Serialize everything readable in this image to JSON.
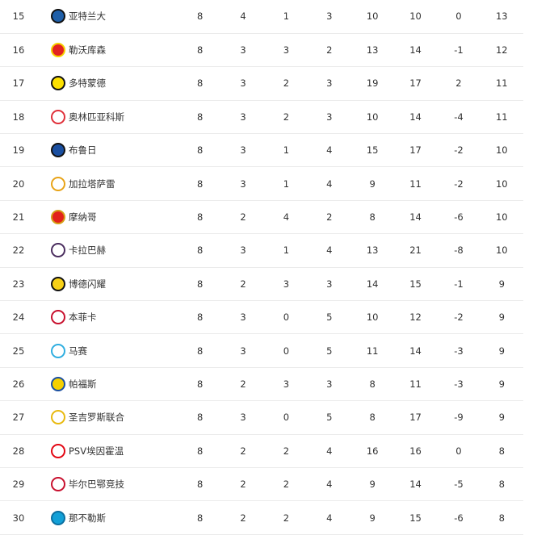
{
  "standings": [
    {
      "rank": "15",
      "team": "亚特兰大",
      "logo": "atalanta-logo",
      "color": "#1f5fa8",
      "accent": "#111111",
      "played": "8",
      "won": "4",
      "drawn": "1",
      "lost": "3",
      "gf": "10",
      "ga": "10",
      "gd": "0",
      "pts": "13"
    },
    {
      "rank": "16",
      "team": "勒沃库森",
      "logo": "leverkusen-logo",
      "color": "#e32221",
      "accent": "#f5d000",
      "played": "8",
      "won": "3",
      "drawn": "3",
      "lost": "2",
      "gf": "13",
      "ga": "14",
      "gd": "-1",
      "pts": "12"
    },
    {
      "rank": "17",
      "team": "多特蒙德",
      "logo": "dortmund-logo",
      "color": "#fde100",
      "accent": "#111111",
      "played": "8",
      "won": "3",
      "drawn": "2",
      "lost": "3",
      "gf": "19",
      "ga": "17",
      "gd": "2",
      "pts": "11"
    },
    {
      "rank": "18",
      "team": "奥林匹亚科斯",
      "logo": "olympiacos-logo",
      "color": "#ffffff",
      "accent": "#e0303a",
      "played": "8",
      "won": "3",
      "drawn": "2",
      "lost": "3",
      "gf": "10",
      "ga": "14",
      "gd": "-4",
      "pts": "11"
    },
    {
      "rank": "19",
      "team": "布鲁日",
      "logo": "club-brugge-logo",
      "color": "#1a4fa0",
      "accent": "#111111",
      "played": "8",
      "won": "3",
      "drawn": "1",
      "lost": "4",
      "gf": "15",
      "ga": "17",
      "gd": "-2",
      "pts": "10"
    },
    {
      "rank": "20",
      "team": "加拉塔萨雷",
      "logo": "galatasaray-logo",
      "color": "#ffffff",
      "accent": "#e8a317",
      "played": "8",
      "won": "3",
      "drawn": "1",
      "lost": "4",
      "gf": "9",
      "ga": "11",
      "gd": "-2",
      "pts": "10"
    },
    {
      "rank": "21",
      "team": "摩纳哥",
      "logo": "monaco-logo",
      "color": "#e2231a",
      "accent": "#d4a017",
      "played": "8",
      "won": "2",
      "drawn": "4",
      "lost": "2",
      "gf": "8",
      "ga": "14",
      "gd": "-6",
      "pts": "10"
    },
    {
      "rank": "22",
      "team": "卡拉巴赫",
      "logo": "qarabag-logo",
      "color": "#ffffff",
      "accent": "#4a2d5e",
      "played": "8",
      "won": "3",
      "drawn": "1",
      "lost": "4",
      "gf": "13",
      "ga": "21",
      "gd": "-8",
      "pts": "10"
    },
    {
      "rank": "23",
      "team": "博德闪耀",
      "logo": "bodo-glimt-logo",
      "color": "#f7d117",
      "accent": "#111111",
      "played": "8",
      "won": "2",
      "drawn": "3",
      "lost": "3",
      "gf": "14",
      "ga": "15",
      "gd": "-1",
      "pts": "9"
    },
    {
      "rank": "24",
      "team": "本菲卡",
      "logo": "benfica-logo",
      "color": "#ffffff",
      "accent": "#c8102e",
      "played": "8",
      "won": "3",
      "drawn": "0",
      "lost": "5",
      "gf": "10",
      "ga": "12",
      "gd": "-2",
      "pts": "9"
    },
    {
      "rank": "25",
      "team": "马赛",
      "logo": "marseille-logo",
      "color": "#ffffff",
      "accent": "#2faee0",
      "played": "8",
      "won": "3",
      "drawn": "0",
      "lost": "5",
      "gf": "11",
      "ga": "14",
      "gd": "-3",
      "pts": "9"
    },
    {
      "rank": "26",
      "team": "帕福斯",
      "logo": "pafos-logo",
      "color": "#f5d000",
      "accent": "#1a4fa0",
      "played": "8",
      "won": "2",
      "drawn": "3",
      "lost": "3",
      "gf": "8",
      "ga": "11",
      "gd": "-3",
      "pts": "9"
    },
    {
      "rank": "27",
      "team": "圣吉罗斯联合",
      "logo": "union-sg-logo",
      "color": "#ffffff",
      "accent": "#e8b90e",
      "played": "8",
      "won": "3",
      "drawn": "0",
      "lost": "5",
      "gf": "8",
      "ga": "17",
      "gd": "-9",
      "pts": "9"
    },
    {
      "rank": "28",
      "team": "PSV埃因霍温",
      "logo": "psv-logo",
      "color": "#ffffff",
      "accent": "#e30613",
      "played": "8",
      "won": "2",
      "drawn": "2",
      "lost": "4",
      "gf": "16",
      "ga": "16",
      "gd": "0",
      "pts": "8"
    },
    {
      "rank": "29",
      "team": "毕尔巴鄂竞技",
      "logo": "athletic-bilbao-logo",
      "color": "#ffffff",
      "accent": "#c8102e",
      "played": "8",
      "won": "2",
      "drawn": "2",
      "lost": "4",
      "gf": "9",
      "ga": "14",
      "gd": "-5",
      "pts": "8"
    },
    {
      "rank": "30",
      "team": "那不勒斯",
      "logo": "napoli-logo",
      "color": "#12a0d7",
      "accent": "#0b6fa0",
      "played": "8",
      "won": "2",
      "drawn": "2",
      "lost": "4",
      "gf": "9",
      "ga": "15",
      "gd": "-6",
      "pts": "8"
    }
  ]
}
